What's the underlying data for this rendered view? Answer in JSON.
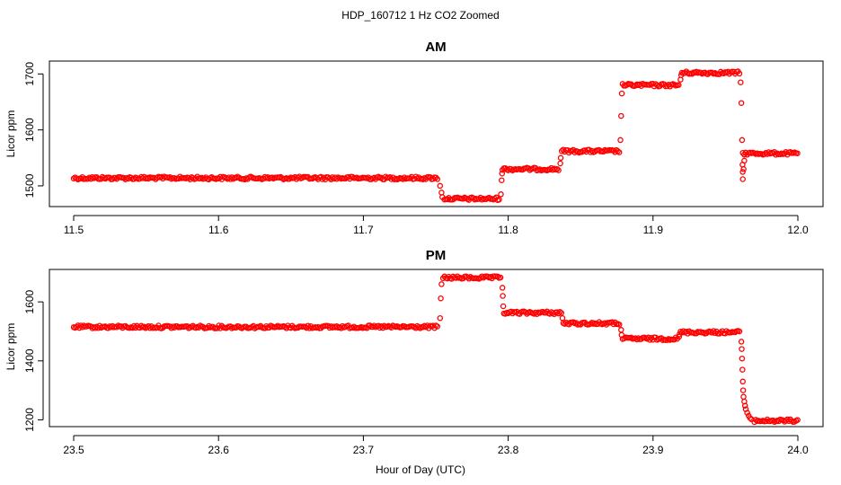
{
  "figure": {
    "title": "HDP_160712  1 Hz CO2 Zoomed",
    "xlabel": "Hour of Day (UTC)"
  },
  "chart_data": [
    {
      "type": "scatter",
      "title": "AM",
      "xlabel": "",
      "ylabel": "Licor ppm",
      "xlim": [
        11.5,
        12.0
      ],
      "ylim": [
        1463,
        1723
      ],
      "xticks": [
        "11.5",
        "11.6",
        "11.7",
        "11.8",
        "11.9",
        "12.0"
      ],
      "yticks": [
        "1500",
        "1600",
        "1700"
      ],
      "marker_color": "#ff0000",
      "segments": [
        {
          "x_start": 11.5,
          "x_end": 11.752,
          "y": 1514
        },
        {
          "x_start": 11.756,
          "x_end": 11.794,
          "y": 1477
        },
        {
          "x_start": 11.796,
          "x_end": 11.835,
          "y": 1530
        },
        {
          "x_start": 11.837,
          "x_end": 11.877,
          "y": 1562
        },
        {
          "x_start": 11.879,
          "x_end": 11.918,
          "y": 1680
        },
        {
          "x_start": 11.92,
          "x_end": 11.96,
          "y": 1702
        },
        {
          "x_start": 11.962,
          "x_end": 12.0,
          "y": 1558
        }
      ],
      "transitions": [
        {
          "x": 11.753,
          "y": 1500
        },
        {
          "x": 11.754,
          "y": 1488
        },
        {
          "x": 11.7545,
          "y": 1480
        },
        {
          "x": 11.795,
          "y": 1485
        },
        {
          "x": 11.7955,
          "y": 1510
        },
        {
          "x": 11.7958,
          "y": 1522
        },
        {
          "x": 11.836,
          "y": 1540
        },
        {
          "x": 11.8363,
          "y": 1550
        },
        {
          "x": 11.8775,
          "y": 1582
        },
        {
          "x": 11.878,
          "y": 1625
        },
        {
          "x": 11.8785,
          "y": 1665
        },
        {
          "x": 11.919,
          "y": 1690
        },
        {
          "x": 11.9195,
          "y": 1698
        },
        {
          "x": 11.9605,
          "y": 1685
        },
        {
          "x": 11.961,
          "y": 1648
        },
        {
          "x": 11.9615,
          "y": 1582
        },
        {
          "x": 11.9618,
          "y": 1538
        },
        {
          "x": 11.9619,
          "y": 1525
        },
        {
          "x": 11.962,
          "y": 1512
        },
        {
          "x": 11.9625,
          "y": 1530
        },
        {
          "x": 11.963,
          "y": 1545
        }
      ]
    },
    {
      "type": "scatter",
      "title": "PM",
      "xlabel": "",
      "ylabel": "Licor ppm",
      "xlim": [
        23.5,
        24.0
      ],
      "ylim": [
        1177,
        1710
      ],
      "xticks": [
        "23.5",
        "23.6",
        "23.7",
        "23.8",
        "23.9",
        "24.0"
      ],
      "yticks": [
        "1200",
        "1400",
        "1600"
      ],
      "marker_color": "#ff0000",
      "segments": [
        {
          "x_start": 23.5,
          "x_end": 23.752,
          "y": 1515
        },
        {
          "x_start": 23.755,
          "x_end": 23.795,
          "y": 1682
        },
        {
          "x_start": 23.797,
          "x_end": 23.837,
          "y": 1563
        },
        {
          "x_start": 23.838,
          "x_end": 23.877,
          "y": 1527
        },
        {
          "x_start": 23.879,
          "x_end": 23.917,
          "y": 1475
        },
        {
          "x_start": 23.919,
          "x_end": 23.96,
          "y": 1497
        },
        {
          "x_start": 23.97,
          "x_end": 24.0,
          "y": 1197
        }
      ],
      "transitions": [
        {
          "x": 23.753,
          "y": 1545
        },
        {
          "x": 23.7535,
          "y": 1612
        },
        {
          "x": 23.754,
          "y": 1660
        },
        {
          "x": 23.796,
          "y": 1648
        },
        {
          "x": 23.7963,
          "y": 1620
        },
        {
          "x": 23.7966,
          "y": 1585
        },
        {
          "x": 23.8375,
          "y": 1545
        },
        {
          "x": 23.878,
          "y": 1505
        },
        {
          "x": 23.8783,
          "y": 1488
        },
        {
          "x": 23.918,
          "y": 1482
        },
        {
          "x": 23.9183,
          "y": 1490
        },
        {
          "x": 23.961,
          "y": 1465
        },
        {
          "x": 23.9612,
          "y": 1440
        },
        {
          "x": 23.9615,
          "y": 1408
        },
        {
          "x": 23.9617,
          "y": 1370
        },
        {
          "x": 23.962,
          "y": 1330
        },
        {
          "x": 23.9622,
          "y": 1300
        },
        {
          "x": 23.9625,
          "y": 1278
        },
        {
          "x": 23.963,
          "y": 1262
        },
        {
          "x": 23.9635,
          "y": 1248
        },
        {
          "x": 23.964,
          "y": 1236
        },
        {
          "x": 23.965,
          "y": 1224
        },
        {
          "x": 23.966,
          "y": 1214
        },
        {
          "x": 23.967,
          "y": 1206
        },
        {
          "x": 23.968,
          "y": 1202
        }
      ]
    }
  ]
}
